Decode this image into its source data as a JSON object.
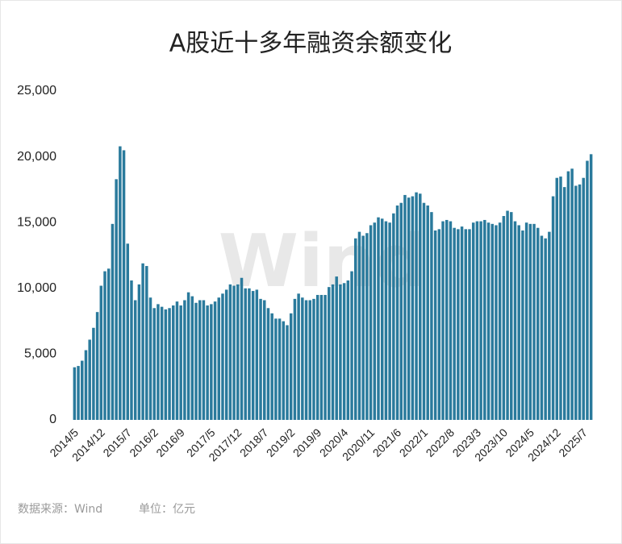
{
  "chart_data": {
    "type": "bar",
    "title": "A股近十多年融资余额变化",
    "watermark": "Wind",
    "source": "数据来源：Wind",
    "unit": "单位：亿元",
    "color": "#2a7a9c",
    "categories": [
      "2014/5",
      null,
      null,
      null,
      null,
      null,
      null,
      "2014/12",
      null,
      null,
      null,
      null,
      null,
      null,
      "2015/7",
      null,
      null,
      null,
      null,
      null,
      null,
      "2016/2",
      null,
      null,
      null,
      null,
      null,
      null,
      "2016/9",
      null,
      null,
      null,
      null,
      null,
      null,
      null,
      "2017/5",
      null,
      null,
      null,
      null,
      null,
      null,
      "2017/12",
      null,
      null,
      null,
      null,
      null,
      null,
      "2018/7",
      null,
      null,
      null,
      null,
      null,
      null,
      "2019/2",
      null,
      null,
      null,
      null,
      null,
      null,
      "2019/9",
      null,
      null,
      null,
      null,
      null,
      null,
      "2020/4",
      null,
      null,
      null,
      null,
      null,
      null,
      "2020/11",
      null,
      null,
      null,
      null,
      null,
      null,
      "2021/6",
      null,
      null,
      null,
      null,
      null,
      null,
      "2022/1",
      null,
      null,
      null,
      null,
      null,
      null,
      "2022/8",
      null,
      null,
      null,
      null,
      null,
      null,
      "2023/3",
      null,
      null,
      null,
      null,
      null,
      null,
      "2023/10",
      null,
      null,
      null,
      null,
      null,
      null,
      "2024/5",
      null,
      null,
      null,
      null,
      null,
      null,
      "2024/12",
      null,
      null,
      null,
      null,
      null,
      null,
      "2025/7",
      null,
      null
    ],
    "values": [
      4000,
      4100,
      4500,
      5300,
      6100,
      7000,
      8200,
      10200,
      11300,
      11500,
      14900,
      18300,
      20800,
      20500,
      13400,
      10600,
      9100,
      10300,
      11900,
      11700,
      9300,
      8500,
      8800,
      8600,
      8400,
      8500,
      8700,
      9000,
      8700,
      9100,
      9700,
      9400,
      8900,
      9100,
      9100,
      8700,
      8800,
      9000,
      9300,
      9600,
      9900,
      10300,
      10200,
      10300,
      10800,
      10000,
      10000,
      9800,
      9900,
      9200,
      9100,
      8500,
      8100,
      7700,
      7700,
      7500,
      7200,
      8100,
      9200,
      9600,
      9300,
      9100,
      9100,
      9200,
      9500,
      9500,
      9500,
      10100,
      10300,
      10900,
      10300,
      10400,
      10600,
      11300,
      13800,
      14300,
      14000,
      14200,
      14800,
      15000,
      15400,
      15300,
      15100,
      15000,
      15700,
      16300,
      16500,
      17100,
      16900,
      17000,
      17300,
      17200,
      16500,
      16300,
      15800,
      14400,
      14500,
      15100,
      15200,
      15100,
      14600,
      14500,
      14700,
      14500,
      14500,
      15000,
      15100,
      15100,
      15200,
      15000,
      14900,
      14800,
      15000,
      15500,
      15900,
      15800,
      15100,
      14800,
      14400,
      15000,
      14900,
      14900,
      14600,
      14000,
      13800,
      14300,
      17000,
      18400,
      18500,
      17700,
      18900,
      19100,
      17800,
      17900,
      18400,
      19700,
      20200
    ],
    "ylim": [
      0,
      25000
    ],
    "yticks": [
      0,
      {
        "value": 5000,
        "label": "5,000"
      },
      {
        "value": 10000,
        "label": "10,000"
      },
      {
        "value": 15000,
        "label": "15,000"
      },
      {
        "value": 20000,
        "label": "20,000"
      },
      {
        "value": 25000,
        "label": "25,000"
      }
    ]
  }
}
